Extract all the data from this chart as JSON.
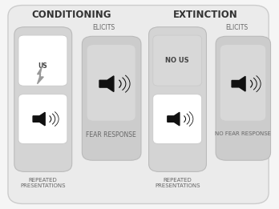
{
  "bg_outer_fc": "#ebebeb",
  "bg_outer_ec": "#cccccc",
  "bg_panel_tall_fc": "#d4d4d4",
  "bg_panel_tall_ec": "#bbbbbb",
  "bg_panel_sq_fc": "#cccccc",
  "bg_panel_sq_ec": "#bbbbbb",
  "bg_icon_fc": "#ffffff",
  "bg_icon_ec": "#cccccc",
  "bg_nousbox_fc": "#d8d8d8",
  "speaker_color": "#111111",
  "text_dark": "#333333",
  "text_gray": "#666666",
  "title_conditioning": "CONDITIONING",
  "title_extinction": "EXTINCTION",
  "label_elicits_1": "ELICITS",
  "label_elicits_2": "ELICITS",
  "label_fear": "FEAR RESPONSE",
  "label_no_fear": "NO FEAR RESPONSE",
  "label_rep1": "REPEATED\nPRESENTATIONS",
  "label_rep2": "REPEATED\nPRESENTATIONS",
  "label_us": "US",
  "label_no_us": "NO US",
  "fig_w": 3.48,
  "fig_h": 2.61,
  "dpi": 100
}
